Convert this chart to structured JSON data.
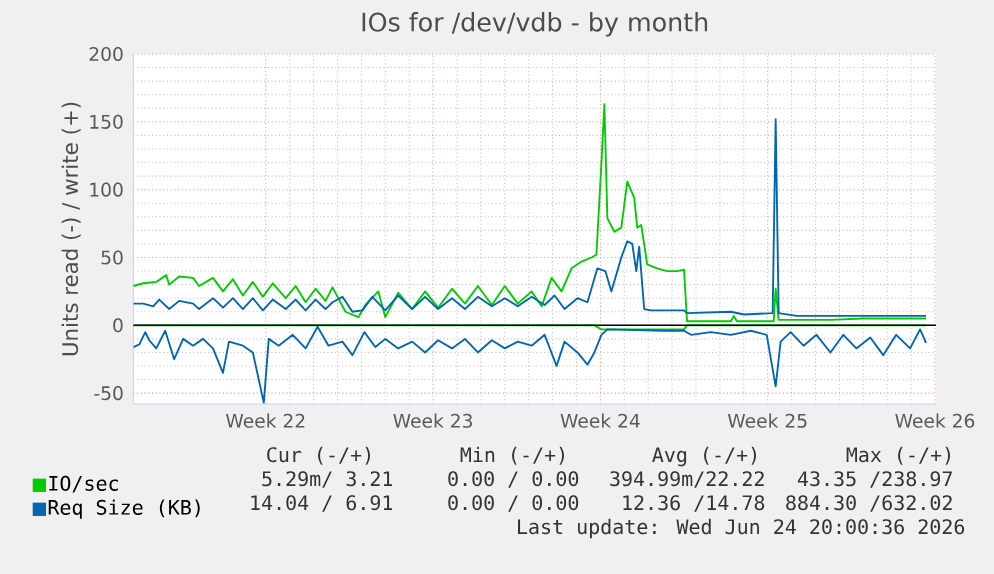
{
  "chart_data": {
    "type": "line",
    "title": "IOs for /dev/vdb - by month",
    "ylabel": "Units read (-) / write (+)",
    "xlim": [
      "2026-05-19T11:00",
      "2026-06-22T01:00"
    ],
    "ylim": [
      -58,
      200
    ],
    "xticks": [
      {
        "value": "2026-05-25",
        "label": "Week 22"
      },
      {
        "value": "2026-06-01",
        "label": "Week 23"
      },
      {
        "value": "2026-06-08",
        "label": "Week 24"
      },
      {
        "value": "2026-06-15",
        "label": "Week 25"
      },
      {
        "value": "2026-06-22",
        "label": "Week 26"
      }
    ],
    "yticks": [
      -50,
      0,
      50,
      100,
      150,
      200
    ],
    "grid": true,
    "legend": "bottom left",
    "ref_lines": [
      {
        "axis": "y",
        "value": 0,
        "color": "#000000"
      }
    ],
    "series": [
      {
        "name": "IO/sec",
        "color": "#00cc00",
        "x": [
          "2026-05-19T11:00",
          "2026-05-19T21:00",
          "2026-05-20T10:00",
          "2026-05-20T20:00",
          "2026-05-20T23:00",
          "2026-05-21T09:00",
          "2026-05-21T23:00",
          "2026-05-22T05:00",
          "2026-05-22T19:00",
          "2026-05-23T05:00",
          "2026-05-23T15:00",
          "2026-05-24T01:00",
          "2026-05-24T11:00",
          "2026-05-24T21:00",
          "2026-05-25T07:00",
          "2026-05-25T20:00",
          "2026-05-26T06:00",
          "2026-05-26T16:00",
          "2026-05-27T02:00",
          "2026-05-27T12:00",
          "2026-05-27T19:00",
          "2026-05-28T08:00",
          "2026-05-28T21:00",
          "2026-05-29T04:00",
          "2026-05-29T17:00",
          "2026-05-30T00:00",
          "2026-05-30T13:00",
          "2026-05-31T03:00",
          "2026-05-31T16:00",
          "2026-06-01T05:00",
          "2026-06-01T19:00",
          "2026-06-02T08:00",
          "2026-06-02T21:00",
          "2026-06-03T11:00",
          "2026-06-04T00:00",
          "2026-06-04T13:00",
          "2026-06-05T03:00",
          "2026-06-05T13:00",
          "2026-06-05T23:00",
          "2026-06-06T09:00",
          "2026-06-06T19:00",
          "2026-06-07T05:00",
          "2026-06-07T15:00",
          "2026-06-07T20:00",
          "2026-06-08T01:00",
          "2026-06-08T04:00",
          "2026-06-08T07:00",
          "2026-06-08T14:00",
          "2026-06-08T21:00",
          "2026-06-09T03:00",
          "2026-06-09T10:00",
          "2026-06-09T13:00",
          "2026-06-09T17:00",
          "2026-06-09T23:00",
          "2026-06-10T09:00",
          "2026-06-10T19:00",
          "2026-06-11T05:00",
          "2026-06-11T12:00",
          "2026-06-11T15:00",
          "2026-06-12T08:00",
          "2026-06-13T11:00",
          "2026-06-13T14:00",
          "2026-06-13T17:00",
          "2026-06-15T06:00",
          "2026-06-15T08:00",
          "2026-06-15T11:00",
          "2026-06-17T15:00",
          "2026-06-19T00:00",
          "2026-06-20T09:00",
          "2026-06-21T15:00"
        ],
        "values": [
          29,
          31,
          32,
          37,
          30,
          36,
          35,
          29,
          35,
          25,
          34,
          22,
          32,
          21,
          31,
          20,
          29,
          17,
          27,
          18,
          28,
          10,
          6,
          15,
          25,
          6,
          24,
          12,
          25,
          13,
          27,
          16,
          29,
          15,
          29,
          16,
          25,
          14,
          35,
          25,
          42,
          47,
          50,
          52,
          119,
          163,
          79,
          69,
          72,
          106,
          94,
          72,
          74,
          45,
          42,
          40,
          40,
          41,
          3,
          3,
          3,
          7,
          3,
          3,
          27,
          4,
          4,
          5,
          5,
          5
        ]
      },
      {
        "color": "#00cc00",
        "x": [
          "2026-05-19T11:00",
          "2026-06-07T18:00",
          "2026-06-08T01:00",
          "2026-06-11T12:00",
          "2026-06-11T15:00",
          "2026-06-21T15:00"
        ],
        "values": [
          0,
          0,
          -3,
          -3,
          0,
          0
        ]
      },
      {
        "name": "Req Size (KB)",
        "color": "#0066b3",
        "x": [
          "2026-05-19T11:00",
          "2026-05-19T21:00",
          "2026-05-20T07:00",
          "2026-05-20T13:00",
          "2026-05-20T23:00",
          "2026-05-21T09:00",
          "2026-05-21T23:00",
          "2026-05-22T05:00",
          "2026-05-22T19:00",
          "2026-05-23T05:00",
          "2026-05-23T15:00",
          "2026-05-24T01:00",
          "2026-05-24T11:00",
          "2026-05-24T21:00",
          "2026-05-25T07:00",
          "2026-05-25T20:00",
          "2026-05-26T06:00",
          "2026-05-26T16:00",
          "2026-05-27T02:00",
          "2026-05-27T12:00",
          "2026-05-27T19:00",
          "2026-05-28T05:00",
          "2026-05-28T15:00",
          "2026-05-29T01:00",
          "2026-05-29T11:00",
          "2026-05-30T00:00",
          "2026-05-30T13:00",
          "2026-05-31T03:00",
          "2026-05-31T16:00",
          "2026-06-01T05:00",
          "2026-06-01T19:00",
          "2026-06-02T08:00",
          "2026-06-02T21:00",
          "2026-06-03T11:00",
          "2026-06-04T00:00",
          "2026-06-04T13:00",
          "2026-06-05T03:00",
          "2026-06-05T16:00",
          "2026-06-06T02:00",
          "2026-06-06T12:00",
          "2026-06-07T01:00",
          "2026-06-07T11:00",
          "2026-06-07T21:00",
          "2026-06-08T05:00",
          "2026-06-08T11:00",
          "2026-06-08T21:00",
          "2026-06-09T03:00",
          "2026-06-09T08:00",
          "2026-06-09T12:00",
          "2026-06-09T15:00",
          "2026-06-09T18:00",
          "2026-06-09T20:00",
          "2026-06-10T03:00",
          "2026-06-11T12:00",
          "2026-06-11T15:00",
          "2026-06-13T11:00",
          "2026-06-14T00:00",
          "2026-06-15T05:00",
          "2026-06-15T08:00",
          "2026-06-15T11:00",
          "2026-06-16T05:00",
          "2026-06-19T00:00",
          "2026-06-21T15:00"
        ],
        "values": [
          16,
          16,
          14,
          19,
          12,
          18,
          16,
          12,
          20,
          13,
          20,
          12,
          20,
          11,
          19,
          12,
          19,
          11,
          19,
          12,
          17,
          21,
          10,
          11,
          21,
          11,
          22,
          12,
          21,
          12,
          20,
          12,
          21,
          14,
          20,
          14,
          21,
          15,
          22,
          12,
          20,
          17,
          42,
          40,
          25,
          50,
          62,
          60,
          40,
          58,
          30,
          12,
          11,
          11,
          9,
          10,
          8,
          9,
          152,
          9,
          7,
          7,
          7
        ]
      },
      {
        "color": "#0066b3",
        "x": [
          "2026-05-19T11:00",
          "2026-05-19T17:00",
          "2026-05-19T23:00",
          "2026-05-20T03:00",
          "2026-05-20T10:00",
          "2026-05-20T19:00",
          "2026-05-21T04:00",
          "2026-05-21T13:00",
          "2026-05-21T23:00",
          "2026-05-22T09:00",
          "2026-05-22T19:00",
          "2026-05-23T05:00",
          "2026-05-23T11:00",
          "2026-05-24T01:00",
          "2026-05-24T11:00",
          "2026-05-24T22:00",
          "2026-05-25T03:00",
          "2026-05-25T13:00",
          "2026-05-26T03:00",
          "2026-05-26T16:00",
          "2026-05-27T04:00",
          "2026-05-27T15:00",
          "2026-05-28T05:00",
          "2026-05-28T15:00",
          "2026-05-29T03:00",
          "2026-05-29T14:00",
          "2026-05-30T00:00",
          "2026-05-30T13:00",
          "2026-05-31T03:00",
          "2026-05-31T16:00",
          "2026-06-01T05:00",
          "2026-06-01T19:00",
          "2026-06-02T08:00",
          "2026-06-02T21:00",
          "2026-06-03T11:00",
          "2026-06-04T00:00",
          "2026-06-04T13:00",
          "2026-06-05T03:00",
          "2026-06-05T16:00",
          "2026-06-06T04:00",
          "2026-06-06T12:00",
          "2026-06-07T01:00",
          "2026-06-07T11:00",
          "2026-06-07T18:00",
          "2026-06-08T01:00",
          "2026-06-08T07:00",
          "2026-06-10T16:00",
          "2026-06-11T12:00",
          "2026-06-11T19:00",
          "2026-06-12T15:00",
          "2026-06-13T11:00",
          "2026-06-14T07:00",
          "2026-06-14T23:00",
          "2026-06-15T08:00",
          "2026-06-15T13:00",
          "2026-06-15T23:00",
          "2026-06-16T12:00",
          "2026-06-17T01:00",
          "2026-06-17T15:00",
          "2026-06-18T04:00",
          "2026-06-18T17:00",
          "2026-06-19T07:00",
          "2026-06-19T20:00",
          "2026-06-20T09:00",
          "2026-06-20T23:00",
          "2026-06-21T09:00",
          "2026-06-21T15:00"
        ],
        "values": [
          -16,
          -14,
          -5,
          -11,
          -17,
          -4,
          -25,
          -10,
          -15,
          -10,
          -17,
          -35,
          -12,
          -15,
          -20,
          -57,
          -10,
          -15,
          -7,
          -17,
          -1,
          -15,
          -12,
          -22,
          -5,
          -16,
          -10,
          -17,
          -12,
          -20,
          -11,
          -17,
          -10,
          -20,
          -11,
          -17,
          -12,
          -15,
          -7,
          -30,
          -12,
          -20,
          -29,
          -20,
          -7,
          -3,
          -4,
          -4,
          -7,
          -5,
          -7,
          -4,
          -7,
          -45,
          -12,
          -5,
          -15,
          -7,
          -20,
          -7,
          -17,
          -9,
          -22,
          -7,
          -17,
          -3,
          -13
        ]
      }
    ],
    "annotations": [
      "Cur (-/+)",
      "Min (-/+)",
      "Avg (-/+)",
      "Max (-/+)",
      "5.29m/ 3.21",
      "0.00 / 0.00",
      "394.99m/22.22",
      "43.35 /238.97",
      "14.04 / 6.91",
      "0.00 / 0.00",
      "12.36 /14.78",
      "884.30 /632.02",
      "Last update: Wed Jun 24 20:00:36 2026"
    ]
  }
}
